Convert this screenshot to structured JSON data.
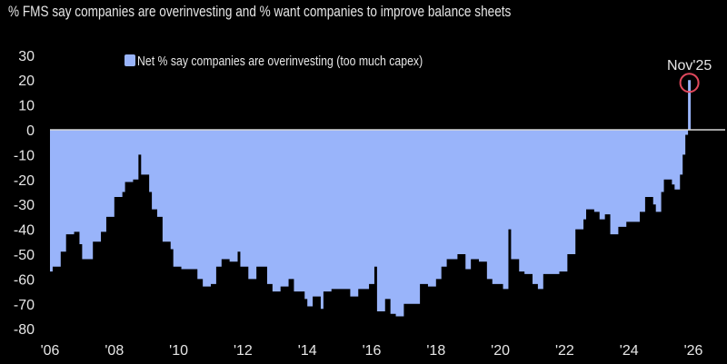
{
  "chart_data": {
    "type": "area",
    "title": "% FMS say companies are overinvesting and % want companies to improve balance sheets",
    "xlabel": "",
    "ylabel": "",
    "ylim": [
      -80,
      30
    ],
    "xlim": [
      "2006-01",
      "2026-01"
    ],
    "yticks": [
      "30",
      "20",
      "10",
      "0",
      "-10",
      "-20",
      "-30",
      "-40",
      "-50",
      "-60",
      "-70",
      "-80"
    ],
    "xticks": [
      "'06",
      "'08",
      "'10",
      "'12",
      "'14",
      "'16",
      "'18",
      "'20",
      "'22",
      "'24",
      "'26"
    ],
    "grid": false,
    "legend": {
      "placement": "top-left",
      "entries": [
        "Net % say companies are overinvesting (too much capex)"
      ]
    },
    "annotation": {
      "label": "Nov'25",
      "date": "2025-11",
      "value": 20,
      "color": "#e0485c"
    },
    "colors": {
      "fill": "#99b4fa",
      "zero_line": "#d8d8d8",
      "background": "#000000",
      "annotation": "#e0485c"
    },
    "series": [
      {
        "name": "Net % say companies are overinvesting (too much capex)",
        "points": [
          [
            "2006-01",
            -57
          ],
          [
            "2006-02",
            -55
          ],
          [
            "2006-05",
            -49
          ],
          [
            "2006-07",
            -42
          ],
          [
            "2006-10",
            -41
          ],
          [
            "2006-12",
            -46
          ],
          [
            "2007-01",
            -52
          ],
          [
            "2007-04",
            -52
          ],
          [
            "2007-05",
            -45
          ],
          [
            "2007-08",
            -41
          ],
          [
            "2007-10",
            -35
          ],
          [
            "2008-01",
            -27
          ],
          [
            "2008-04",
            -25
          ],
          [
            "2008-05",
            -21
          ],
          [
            "2008-08",
            -20
          ],
          [
            "2008-10",
            -10
          ],
          [
            "2008-11",
            -18
          ],
          [
            "2009-02",
            -25
          ],
          [
            "2009-03",
            -32
          ],
          [
            "2009-05",
            -35
          ],
          [
            "2009-07",
            -45
          ],
          [
            "2009-10",
            -48
          ],
          [
            "2009-11",
            -55
          ],
          [
            "2010-02",
            -56
          ],
          [
            "2010-05",
            -56
          ],
          [
            "2010-08",
            -60
          ],
          [
            "2010-10",
            -63
          ],
          [
            "2011-01",
            -62
          ],
          [
            "2011-03",
            -55
          ],
          [
            "2011-05",
            -52
          ],
          [
            "2011-08",
            -53
          ],
          [
            "2011-11",
            -49
          ],
          [
            "2011-12",
            -55
          ],
          [
            "2012-03",
            -60
          ],
          [
            "2012-06",
            -55
          ],
          [
            "2012-10",
            -62
          ],
          [
            "2012-12",
            -65
          ],
          [
            "2013-03",
            -63
          ],
          [
            "2013-06",
            -60
          ],
          [
            "2013-08",
            -65
          ],
          [
            "2013-12",
            -68
          ],
          [
            "2014-01",
            -71
          ],
          [
            "2014-03",
            -67
          ],
          [
            "2014-06",
            -72
          ],
          [
            "2014-07",
            -65
          ],
          [
            "2014-10",
            -64
          ],
          [
            "2015-02",
            -64
          ],
          [
            "2015-05",
            -67
          ],
          [
            "2015-08",
            -64
          ],
          [
            "2015-12",
            -62
          ],
          [
            "2016-02",
            -55
          ],
          [
            "2016-03",
            -73
          ],
          [
            "2016-06",
            -68
          ],
          [
            "2016-08",
            -74
          ],
          [
            "2016-10",
            -75
          ],
          [
            "2017-01",
            -70
          ],
          [
            "2017-04",
            -70
          ],
          [
            "2017-07",
            -62
          ],
          [
            "2017-10",
            -63
          ],
          [
            "2018-01",
            -60
          ],
          [
            "2018-03",
            -55
          ],
          [
            "2018-05",
            -52
          ],
          [
            "2018-09",
            -50
          ],
          [
            "2018-12",
            -56
          ],
          [
            "2019-02",
            -52
          ],
          [
            "2019-05",
            -53
          ],
          [
            "2019-08",
            -60
          ],
          [
            "2019-10",
            -62
          ],
          [
            "2020-02",
            -64
          ],
          [
            "2020-04",
            -40
          ],
          [
            "2020-05",
            -52
          ],
          [
            "2020-08",
            -57
          ],
          [
            "2020-10",
            -58
          ],
          [
            "2021-01",
            -62
          ],
          [
            "2021-03",
            -64
          ],
          [
            "2021-05",
            -58
          ],
          [
            "2021-09",
            -58
          ],
          [
            "2021-11",
            -57
          ],
          [
            "2022-02",
            -50
          ],
          [
            "2022-05",
            -40
          ],
          [
            "2022-08",
            -36
          ],
          [
            "2022-09",
            -32
          ],
          [
            "2022-12",
            -33
          ],
          [
            "2023-02",
            -36
          ],
          [
            "2023-04",
            -34
          ],
          [
            "2023-06",
            -42
          ],
          [
            "2023-09",
            -39
          ],
          [
            "2023-12",
            -37
          ],
          [
            "2024-02",
            -37
          ],
          [
            "2024-05",
            -33
          ],
          [
            "2024-07",
            -27
          ],
          [
            "2024-10",
            -30
          ],
          [
            "2024-11",
            -33
          ],
          [
            "2025-01",
            -25
          ],
          [
            "2025-02",
            -20
          ],
          [
            "2025-05",
            -22
          ],
          [
            "2025-06",
            -24
          ],
          [
            "2025-08",
            -18
          ],
          [
            "2025-09",
            -10
          ],
          [
            "2025-10",
            -2
          ],
          [
            "2025-11",
            20
          ]
        ]
      }
    ]
  }
}
